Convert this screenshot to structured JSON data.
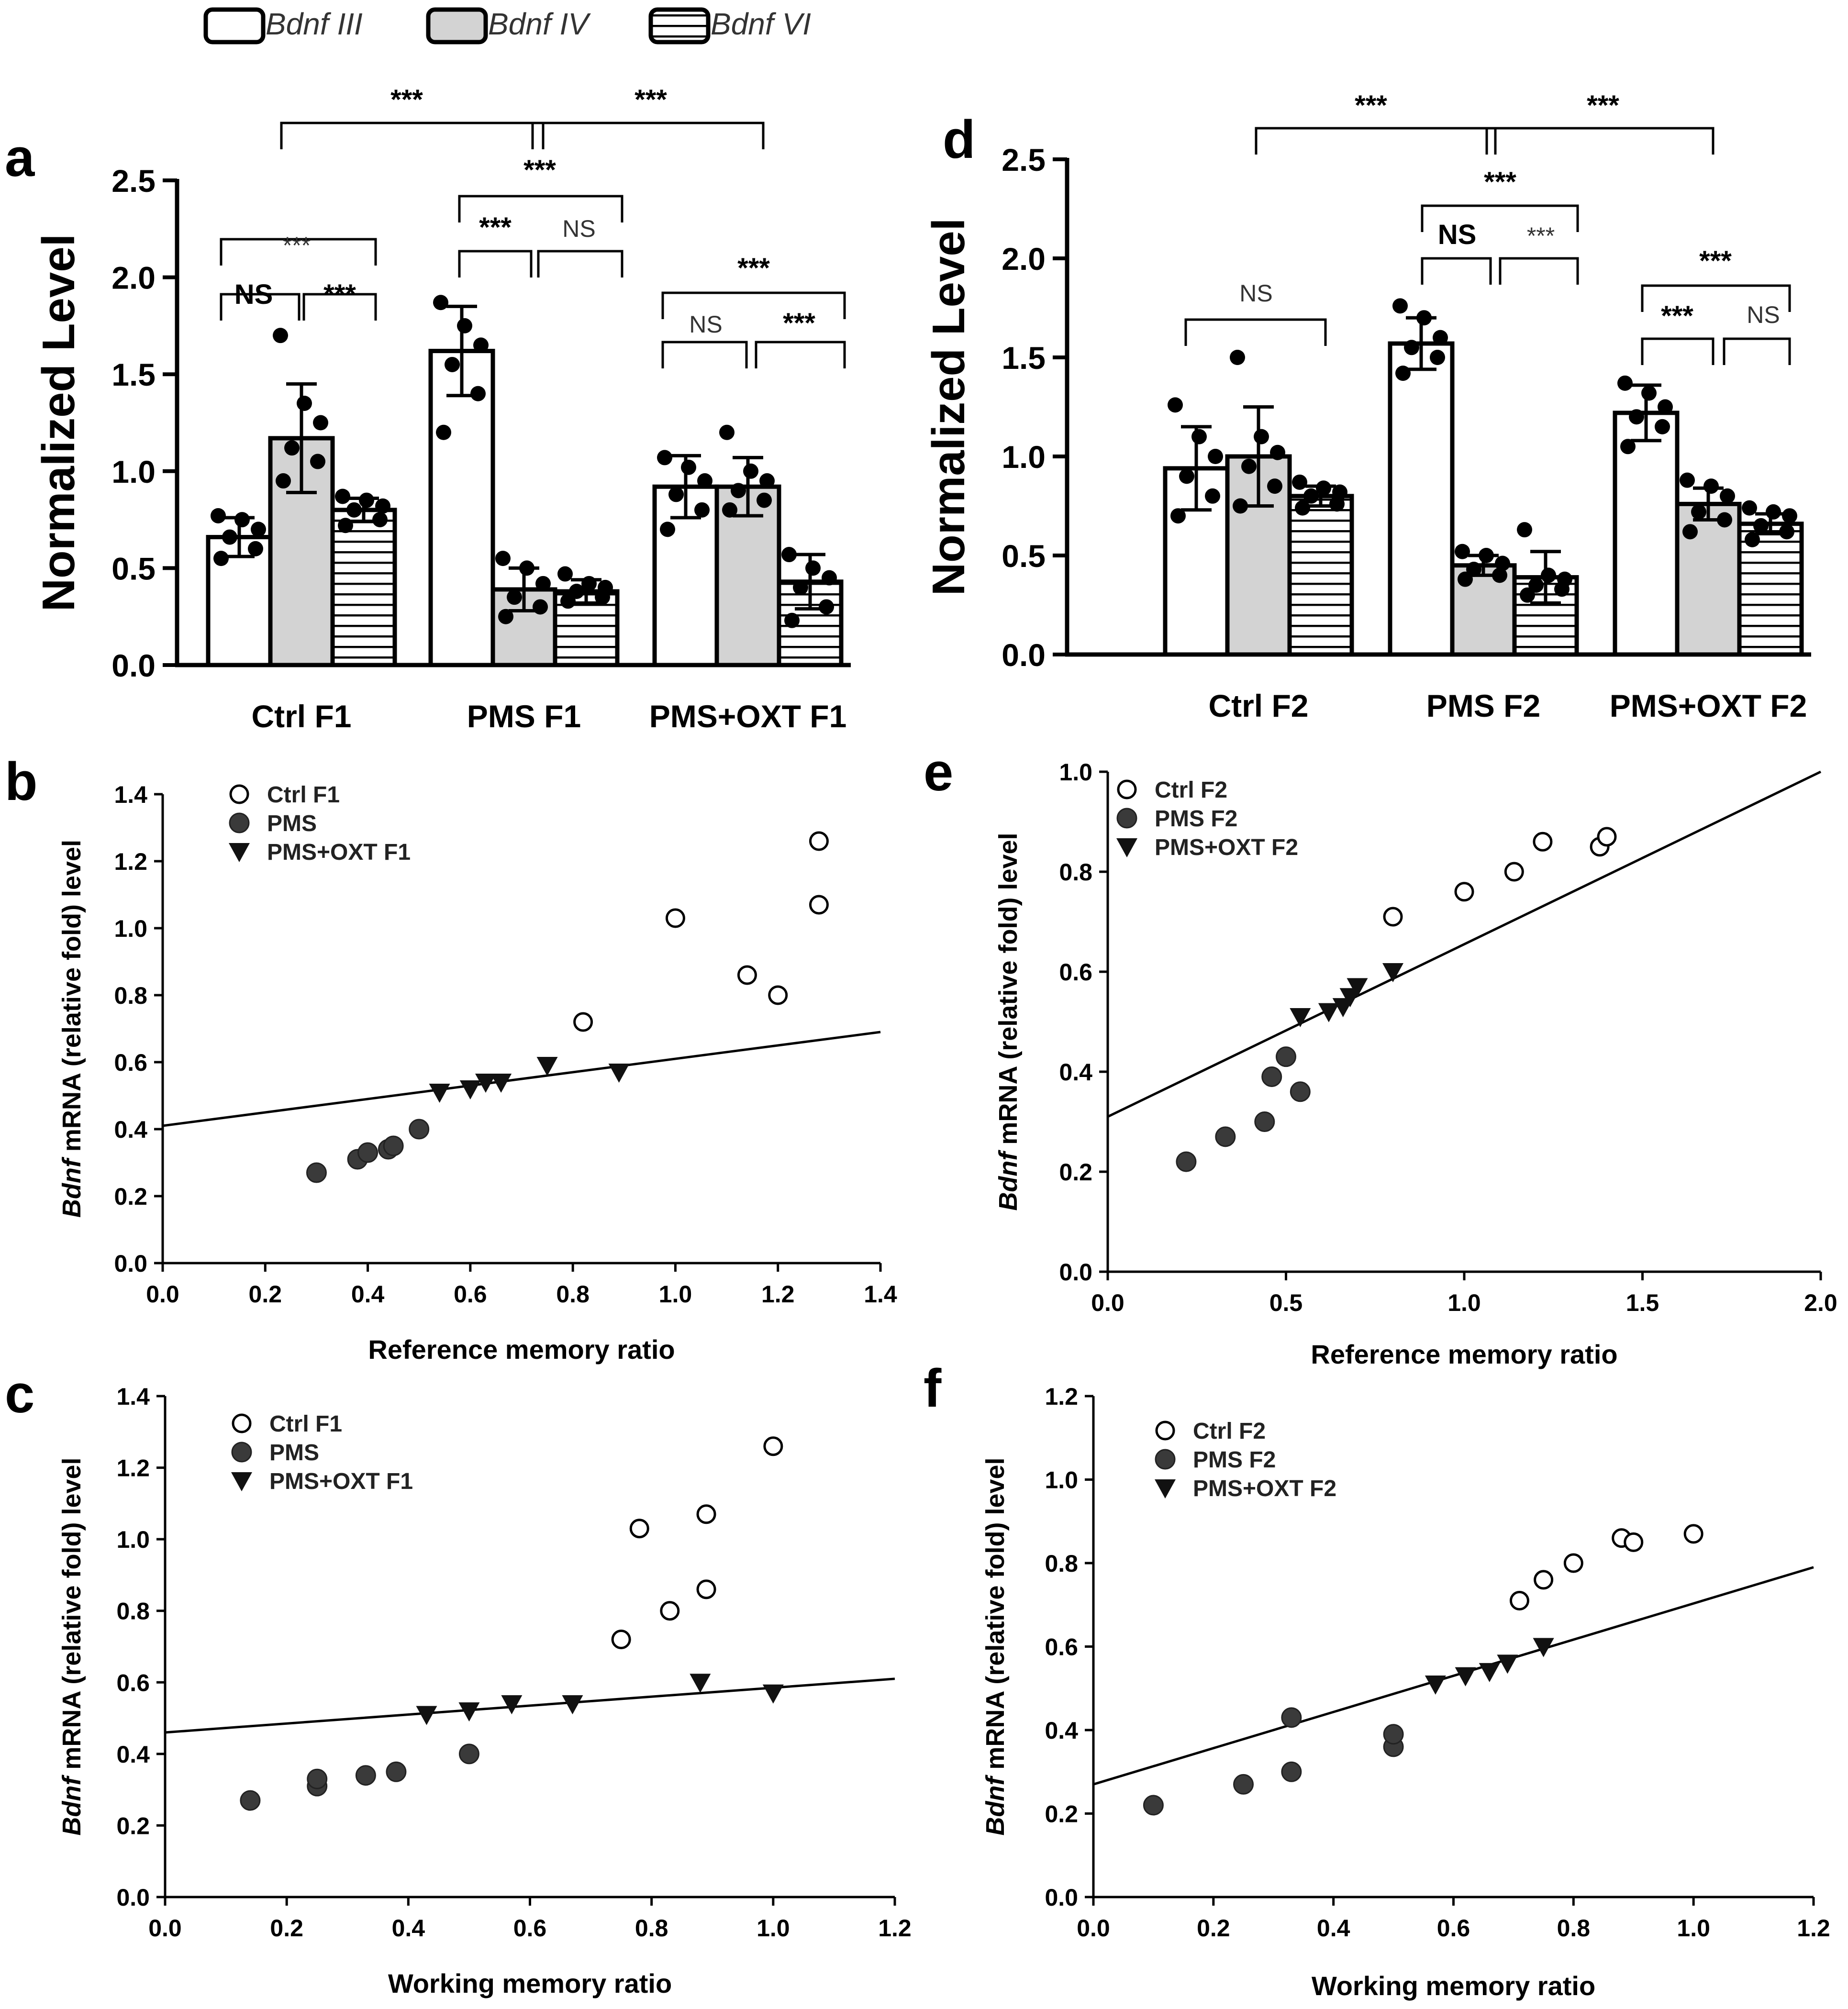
{
  "legend": {
    "items": [
      {
        "label": "Bdnf III",
        "fill": "#ffffff",
        "pattern": "none"
      },
      {
        "label": "Bdnf IV",
        "fill": "#d3d3d3",
        "pattern": "none"
      },
      {
        "label": "Bdnf VI",
        "fill": "#ffffff",
        "pattern": "hlines"
      }
    ]
  },
  "chart_data": [
    {
      "panel": "a",
      "type": "bar",
      "ylabel": "Normalized Level",
      "ylim": [
        0,
        2.5
      ],
      "yticks": [
        "0.0",
        "0.5",
        "1.0",
        "1.5",
        "2.0",
        "2.5"
      ],
      "categories": [
        "Ctrl F1",
        "PMS F1",
        "PMS+OXT F1"
      ],
      "series": [
        {
          "name": "Bdnf III",
          "values": [
            0.66,
            1.62,
            0.92
          ],
          "errors": [
            0.1,
            0.23,
            0.16
          ],
          "points": [
            [
              0.55,
              0.6,
              0.66,
              0.7,
              0.75,
              0.77
            ],
            [
              1.2,
              1.4,
              1.55,
              1.65,
              1.75,
              1.87
            ],
            [
              0.7,
              0.8,
              0.88,
              0.95,
              1.02,
              1.07
            ]
          ]
        },
        {
          "name": "Bdnf IV",
          "values": [
            1.17,
            0.39,
            0.92
          ],
          "errors": [
            0.28,
            0.11,
            0.15
          ],
          "points": [
            [
              0.95,
              1.05,
              1.12,
              1.25,
              1.35,
              1.7
            ],
            [
              0.25,
              0.3,
              0.35,
              0.42,
              0.5,
              0.55
            ],
            [
              0.8,
              0.85,
              0.9,
              0.95,
              1.0,
              1.2
            ]
          ]
        },
        {
          "name": "Bdnf VI",
          "values": [
            0.8,
            0.38,
            0.43
          ],
          "errors": [
            0.06,
            0.06,
            0.14
          ],
          "points": [
            [
              0.72,
              0.75,
              0.8,
              0.82,
              0.85,
              0.87
            ],
            [
              0.33,
              0.35,
              0.38,
              0.4,
              0.42,
              0.47
            ],
            [
              0.23,
              0.3,
              0.4,
              0.45,
              0.5,
              0.57
            ]
          ]
        }
      ],
      "annotations": [
        "***",
        "***",
        "***",
        "NS",
        "***",
        "***",
        "***",
        "NS",
        "***",
        "NS",
        "***"
      ]
    },
    {
      "panel": "d",
      "type": "bar",
      "ylabel": "Normalized Level",
      "ylim": [
        0,
        2.5
      ],
      "yticks": [
        "0.0",
        "0.5",
        "1.0",
        "1.5",
        "2.0",
        "2.5"
      ],
      "categories": [
        "Ctrl F2",
        "PMS F2",
        "PMS+OXT F2"
      ],
      "series": [
        {
          "name": "Bdnf III",
          "values": [
            0.94,
            1.57,
            1.22
          ],
          "errors": [
            0.21,
            0.13,
            0.14
          ],
          "points": [
            [
              0.7,
              0.8,
              0.9,
              1.0,
              1.1,
              1.26
            ],
            [
              1.42,
              1.5,
              1.55,
              1.6,
              1.7,
              1.76
            ],
            [
              1.05,
              1.15,
              1.2,
              1.25,
              1.32,
              1.37
            ]
          ]
        },
        {
          "name": "Bdnf IV",
          "values": [
            1.0,
            0.45,
            0.76
          ],
          "errors": [
            0.25,
            0.05,
            0.08
          ],
          "points": [
            [
              0.75,
              0.85,
              0.95,
              1.02,
              1.1,
              1.5
            ],
            [
              0.38,
              0.4,
              0.43,
              0.46,
              0.5,
              0.52
            ],
            [
              0.62,
              0.68,
              0.72,
              0.8,
              0.85,
              0.88
            ]
          ]
        },
        {
          "name": "Bdnf VI",
          "values": [
            0.8,
            0.39,
            0.66
          ],
          "errors": [
            0.05,
            0.13,
            0.05
          ],
          "points": [
            [
              0.74,
              0.76,
              0.8,
              0.82,
              0.84,
              0.87
            ],
            [
              0.3,
              0.33,
              0.35,
              0.38,
              0.4,
              0.63
            ],
            [
              0.58,
              0.62,
              0.65,
              0.7,
              0.72,
              0.74
            ]
          ]
        }
      ],
      "annotations": [
        "***",
        "***",
        "***",
        "NS",
        "***",
        "NS",
        "***",
        "***",
        "NS"
      ]
    },
    {
      "panel": "b",
      "type": "scatter",
      "xlabel": "Reference memory ratio",
      "ylabel_italic": "Bdnf",
      "ylabel_rest": " mRNA (relative fold) level",
      "xlim": [
        0,
        1.4
      ],
      "ylim": [
        0,
        1.4
      ],
      "xticks": [
        "0.0",
        "0.2",
        "0.4",
        "0.6",
        "0.8",
        "1.0",
        "1.2",
        "1.4"
      ],
      "yticks": [
        "0.0",
        "0.2",
        "0.4",
        "0.6",
        "0.8",
        "1.0",
        "1.2",
        "1.4"
      ],
      "series": [
        {
          "name": "Ctrl F1",
          "marker": "open-circle",
          "x": [
            0.82,
            1.0,
            1.14,
            1.2,
            1.28,
            1.28
          ],
          "y": [
            0.72,
            1.03,
            0.86,
            0.8,
            1.26,
            1.07
          ]
        },
        {
          "name": "PMS",
          "marker": "filled-circle",
          "x": [
            0.3,
            0.38,
            0.4,
            0.44,
            0.45,
            0.5
          ],
          "y": [
            0.27,
            0.31,
            0.33,
            0.34,
            0.35,
            0.4
          ]
        },
        {
          "name": "PMS+OXT F1",
          "marker": "triangle",
          "x": [
            0.54,
            0.6,
            0.63,
            0.66,
            0.75,
            0.89
          ],
          "y": [
            0.51,
            0.52,
            0.54,
            0.54,
            0.59,
            0.57
          ]
        }
      ],
      "fit_line": {
        "x": [
          0.0,
          1.4
        ],
        "y": [
          0.41,
          0.69
        ]
      }
    },
    {
      "panel": "e",
      "type": "scatter",
      "xlabel": "Reference memory ratio",
      "ylabel_italic": "Bdnf",
      "ylabel_rest": " mRNA (relative fold) level",
      "xlim": [
        0,
        2.0
      ],
      "ylim": [
        0,
        1.0
      ],
      "xticks": [
        "0.0",
        "0.5",
        "1.0",
        "1.5",
        "2.0"
      ],
      "yticks": [
        "0.0",
        "0.2",
        "0.4",
        "0.6",
        "0.8",
        "1.0"
      ],
      "series": [
        {
          "name": "Ctrl F2",
          "marker": "open-circle",
          "x": [
            0.8,
            1.0,
            1.14,
            1.22,
            1.38,
            1.4
          ],
          "y": [
            0.71,
            0.76,
            0.8,
            0.86,
            0.85,
            0.87
          ]
        },
        {
          "name": "PMS F2",
          "marker": "filled-circle",
          "x": [
            0.22,
            0.33,
            0.44,
            0.46,
            0.5,
            0.54
          ],
          "y": [
            0.22,
            0.27,
            0.3,
            0.39,
            0.43,
            0.36
          ]
        },
        {
          "name": "PMS+OXT F2",
          "marker": "triangle",
          "x": [
            0.54,
            0.62,
            0.66,
            0.68,
            0.7,
            0.8
          ],
          "y": [
            0.51,
            0.52,
            0.53,
            0.55,
            0.57,
            0.6
          ]
        }
      ],
      "fit_line": {
        "x": [
          0.0,
          2.0
        ],
        "y": [
          0.31,
          1.0
        ]
      }
    },
    {
      "panel": "c",
      "type": "scatter",
      "xlabel": "Working memory ratio",
      "ylabel_italic": "Bdnf",
      "ylabel_rest": " mRNA (relative fold) level",
      "xlim": [
        0,
        1.2
      ],
      "ylim": [
        0,
        1.4
      ],
      "xticks": [
        "0.0",
        "0.2",
        "0.4",
        "0.6",
        "0.8",
        "1.0",
        "1.2"
      ],
      "yticks": [
        "0.0",
        "0.2",
        "0.4",
        "0.6",
        "0.8",
        "1.0",
        "1.2",
        "1.4"
      ],
      "series": [
        {
          "name": "Ctrl F1",
          "marker": "open-circle",
          "x": [
            0.75,
            0.78,
            0.83,
            0.89,
            0.89,
            1.0
          ],
          "y": [
            0.72,
            1.03,
            0.8,
            0.86,
            1.07,
            1.26
          ]
        },
        {
          "name": "PMS",
          "marker": "filled-circle",
          "x": [
            0.14,
            0.25,
            0.25,
            0.33,
            0.38,
            0.5
          ],
          "y": [
            0.27,
            0.31,
            0.33,
            0.34,
            0.35,
            0.4
          ]
        },
        {
          "name": "PMS+OXT F1",
          "marker": "triangle",
          "x": [
            0.43,
            0.5,
            0.57,
            0.67,
            0.88,
            1.0
          ],
          "y": [
            0.51,
            0.52,
            0.54,
            0.54,
            0.6,
            0.57
          ]
        }
      ],
      "fit_line": {
        "x": [
          0.0,
          1.2
        ],
        "y": [
          0.46,
          0.61
        ]
      }
    },
    {
      "panel": "f",
      "type": "scatter",
      "xlabel": "Working memory ratio",
      "ylabel_italic": "Bdnf",
      "ylabel_rest": " mRNA (relative fold) level",
      "xlim": [
        0,
        1.2
      ],
      "ylim": [
        0,
        1.2
      ],
      "xticks": [
        "0.0",
        "0.2",
        "0.4",
        "0.6",
        "0.8",
        "1.0",
        "1.2"
      ],
      "yticks": [
        "0.0",
        "0.2",
        "0.4",
        "0.6",
        "0.8",
        "1.0",
        "1.2"
      ],
      "series": [
        {
          "name": "Ctrl F2",
          "marker": "open-circle",
          "x": [
            0.71,
            0.75,
            0.8,
            0.88,
            0.9,
            1.0
          ],
          "y": [
            0.71,
            0.76,
            0.8,
            0.86,
            0.85,
            0.87
          ]
        },
        {
          "name": "PMS F2",
          "marker": "filled-circle",
          "x": [
            0.1,
            0.25,
            0.33,
            0.33,
            0.5,
            0.5
          ],
          "y": [
            0.22,
            0.27,
            0.3,
            0.43,
            0.36,
            0.39
          ]
        },
        {
          "name": "PMS+OXT F2",
          "marker": "triangle",
          "x": [
            0.57,
            0.62,
            0.66,
            0.69,
            0.75,
            0.75
          ],
          "y": [
            0.51,
            0.53,
            0.54,
            0.56,
            0.6,
            0.6
          ]
        }
      ],
      "fit_line": {
        "x": [
          0.0,
          1.2
        ],
        "y": [
          0.27,
          0.79
        ]
      }
    }
  ]
}
